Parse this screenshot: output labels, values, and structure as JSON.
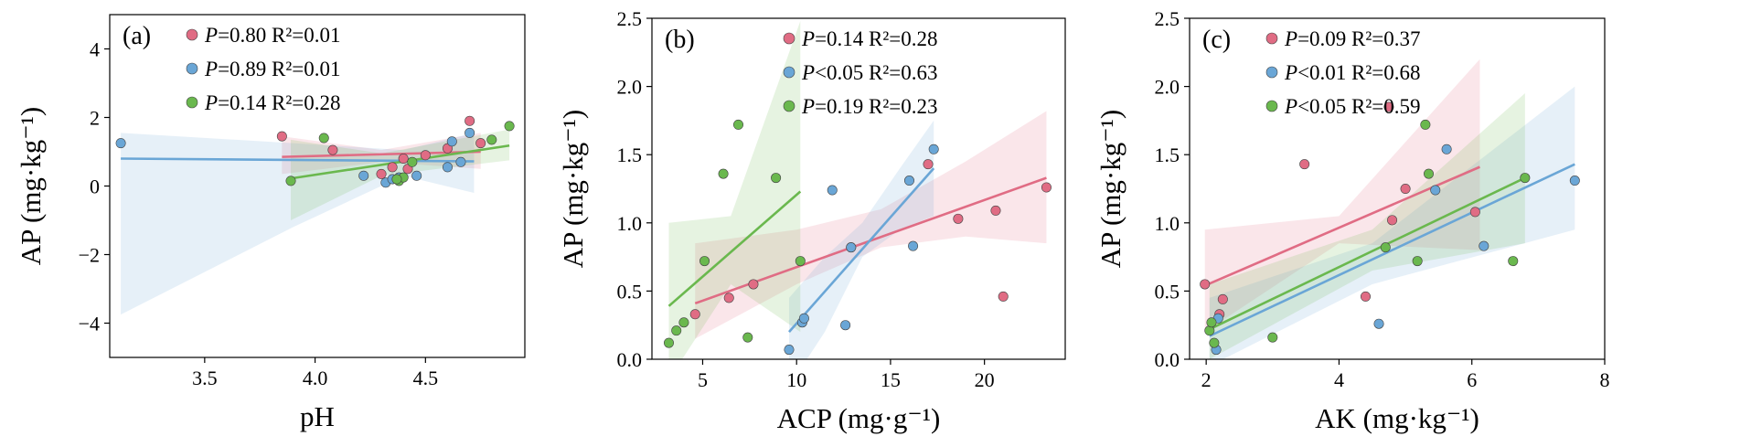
{
  "colors": {
    "pink": "#e06c84",
    "blue": "#6aa6d6",
    "green": "#6ab84e"
  },
  "chart_data": [
    {
      "type": "scatter",
      "panel": "(a)",
      "xlabel": "pH",
      "ylabel": "AP (mg·kg⁻¹)",
      "xlim": [
        3.07,
        4.95
      ],
      "ylim": [
        -5,
        5
      ],
      "xticks": [
        3.5,
        4.0,
        4.5
      ],
      "xtick_labels": [
        "3.5",
        "4.0",
        "4.5"
      ],
      "yticks": [
        -4,
        -2,
        0,
        2,
        4
      ],
      "ytick_labels": [
        "−4",
        "−2",
        "0",
        "2",
        "4"
      ],
      "legend_position": "top-left",
      "series": [
        {
          "color": "pink",
          "legend": {
            "p": "P",
            "pval": "=0.80",
            "r2": "R²=0.01"
          },
          "points": [
            [
              3.85,
              1.45
            ],
            [
              4.08,
              1.05
            ],
            [
              4.35,
              0.55
            ],
            [
              4.42,
              0.5
            ],
            [
              4.5,
              0.9
            ],
            [
              4.6,
              1.1
            ],
            [
              4.7,
              1.9
            ],
            [
              4.75,
              1.25
            ],
            [
              4.3,
              0.35
            ],
            [
              4.4,
              0.8
            ]
          ],
          "fit": [
            [
              3.85,
              0.85
            ],
            [
              4.75,
              1.0
            ]
          ],
          "band": [
            [
              3.85,
              0.35,
              1.45
            ],
            [
              4.3,
              0.7,
              1.05
            ],
            [
              4.75,
              0.5,
              1.55
            ]
          ]
        },
        {
          "color": "blue",
          "legend": {
            "p": "P",
            "pval": "=0.89",
            "r2": "R²=0.01"
          },
          "points": [
            [
              3.12,
              1.25
            ],
            [
              4.22,
              0.3
            ],
            [
              4.32,
              0.1
            ],
            [
              4.38,
              0.25
            ],
            [
              4.46,
              0.3
            ],
            [
              4.6,
              0.55
            ],
            [
              4.62,
              1.3
            ],
            [
              4.66,
              0.7
            ],
            [
              4.7,
              1.55
            ],
            [
              4.35,
              0.2
            ]
          ],
          "fit": [
            [
              3.12,
              0.8
            ],
            [
              4.72,
              0.72
            ]
          ],
          "band": [
            [
              3.12,
              -3.75,
              1.55
            ],
            [
              3.9,
              -1.2,
              1.25
            ],
            [
              4.4,
              0.3,
              1.05
            ],
            [
              4.72,
              -0.2,
              1.55
            ]
          ]
        },
        {
          "color": "green",
          "legend": {
            "p": "P",
            "pval": "=0.14",
            "r2": "R²=0.28"
          },
          "points": [
            [
              3.89,
              0.15
            ],
            [
              4.04,
              1.4
            ],
            [
              4.38,
              0.15
            ],
            [
              4.4,
              0.25
            ],
            [
              4.44,
              0.7
            ],
            [
              4.8,
              1.35
            ],
            [
              4.88,
              1.75
            ],
            [
              4.37,
              0.2
            ]
          ],
          "fit": [
            [
              3.89,
              0.22
            ],
            [
              4.88,
              1.18
            ]
          ],
          "band": [
            [
              3.89,
              -1.0,
              1.35
            ],
            [
              4.3,
              0.3,
              0.95
            ],
            [
              4.88,
              0.75,
              1.65
            ]
          ]
        }
      ]
    },
    {
      "type": "scatter",
      "panel": "(b)",
      "xlabel": "ACP (mg·g⁻¹)",
      "ylabel": "AP (mg·kg⁻¹)",
      "xlim": [
        2.3,
        24.3
      ],
      "ylim": [
        0,
        2.5
      ],
      "xticks": [
        5,
        10,
        15,
        20
      ],
      "xtick_labels": [
        "5",
        "10",
        "15",
        "20"
      ],
      "yticks": [
        0,
        0.5,
        1.0,
        1.5,
        2.0,
        2.5
      ],
      "ytick_labels": [
        "0.0",
        "0.5",
        "1.0",
        "1.5",
        "2.0",
        "2.5"
      ],
      "legend_position": "top-center",
      "series": [
        {
          "color": "pink",
          "legend": {
            "p": "P",
            "pval": "=0.14",
            "r2": "R²=0.28"
          },
          "points": [
            [
              4.6,
              0.33
            ],
            [
              6.4,
              0.45
            ],
            [
              7.7,
              0.55
            ],
            [
              12.9,
              0.82
            ],
            [
              17.0,
              1.43
            ],
            [
              18.6,
              1.03
            ],
            [
              20.6,
              1.09
            ],
            [
              21.0,
              0.46
            ],
            [
              23.3,
              1.26
            ]
          ],
          "fit": [
            [
              4.6,
              0.41
            ],
            [
              23.3,
              1.33
            ]
          ],
          "band": [
            [
              4.6,
              0.15,
              0.85
            ],
            [
              10.0,
              0.55,
              0.95
            ],
            [
              14.5,
              0.82,
              1.1
            ],
            [
              19.0,
              0.9,
              1.45
            ],
            [
              23.3,
              0.85,
              1.82
            ]
          ]
        },
        {
          "color": "blue",
          "legend": {
            "p": "P",
            "pval": "<0.05",
            "r2": "R²=0.63"
          },
          "points": [
            [
              9.6,
              0.07
            ],
            [
              10.3,
              0.27
            ],
            [
              10.4,
              0.3
            ],
            [
              11.9,
              1.24
            ],
            [
              12.6,
              0.25
            ],
            [
              12.9,
              0.82
            ],
            [
              16.0,
              1.31
            ],
            [
              16.2,
              0.83
            ],
            [
              17.3,
              1.54
            ]
          ],
          "fit": [
            [
              9.6,
              0.2
            ],
            [
              17.3,
              1.4
            ]
          ],
          "band": [
            [
              9.6,
              -0.2,
              0.45
            ],
            [
              11.5,
              0.2,
              0.75
            ],
            [
              13.5,
              0.75,
              1.0
            ],
            [
              15.5,
              0.95,
              1.4
            ],
            [
              17.3,
              1.05,
              1.75
            ]
          ]
        },
        {
          "color": "green",
          "legend": {
            "p": "P",
            "pval": "=0.19",
            "r2": "R²=0.23"
          },
          "points": [
            [
              3.2,
              0.12
            ],
            [
              3.6,
              0.21
            ],
            [
              4.0,
              0.27
            ],
            [
              5.1,
              0.72
            ],
            [
              6.1,
              1.36
            ],
            [
              6.9,
              1.72
            ],
            [
              7.4,
              0.16
            ],
            [
              8.9,
              1.33
            ],
            [
              10.2,
              0.72
            ]
          ],
          "fit": [
            [
              3.2,
              0.39
            ],
            [
              10.2,
              1.23
            ]
          ],
          "band": [
            [
              3.2,
              -0.15,
              1.0
            ],
            [
              6.5,
              0.55,
              1.05
            ],
            [
              10.2,
              0.2,
              2.48
            ]
          ]
        }
      ]
    },
    {
      "type": "scatter",
      "panel": "(c)",
      "xlabel": "AK (mg·kg⁻¹)",
      "ylabel": "AP (mg·kg⁻¹)",
      "xlim": [
        1.75,
        8.0
      ],
      "ylim": [
        0,
        2.5
      ],
      "xticks": [
        2,
        4,
        6,
        8
      ],
      "xtick_labels": [
        "2",
        "4",
        "6",
        "8"
      ],
      "yticks": [
        0,
        0.5,
        1.0,
        1.5,
        2.0,
        2.5
      ],
      "ytick_labels": [
        "0.0",
        "0.5",
        "1.0",
        "1.5",
        "2.0",
        "2.5"
      ],
      "legend_position": "top-left",
      "series": [
        {
          "color": "pink",
          "legend": {
            "p": "P",
            "pval": "=0.09",
            "r2": "R²=0.37"
          },
          "points": [
            [
              1.98,
              0.55
            ],
            [
              2.2,
              0.33
            ],
            [
              2.25,
              0.44
            ],
            [
              3.48,
              1.43
            ],
            [
              4.4,
              0.46
            ],
            [
              4.8,
              1.02
            ],
            [
              5.0,
              1.25
            ],
            [
              6.05,
              1.08
            ],
            [
              4.75,
              1.85
            ]
          ],
          "fit": [
            [
              1.98,
              0.54
            ],
            [
              6.12,
              1.41
            ]
          ],
          "band": [
            [
              1.98,
              0.2,
              0.95
            ],
            [
              4.0,
              0.85,
              1.05
            ],
            [
              6.12,
              0.8,
              2.2
            ]
          ]
        },
        {
          "color": "blue",
          "legend": {
            "p": "P",
            "pval": "<0.01",
            "r2": "R²=0.68"
          },
          "points": [
            [
              2.15,
              0.07
            ],
            [
              2.18,
              0.3
            ],
            [
              4.6,
              0.26
            ],
            [
              5.45,
              1.24
            ],
            [
              5.62,
              1.54
            ],
            [
              6.18,
              0.83
            ],
            [
              7.55,
              1.31
            ]
          ],
          "fit": [
            [
              2.05,
              0.17
            ],
            [
              7.55,
              1.43
            ]
          ],
          "band": [
            [
              2.05,
              -0.05,
              0.45
            ],
            [
              4.5,
              0.55,
              0.85
            ],
            [
              7.55,
              0.95,
              2.0
            ]
          ]
        },
        {
          "color": "green",
          "legend": {
            "p": "P",
            "pval": "<0.05",
            "r2": "R²=0.59"
          },
          "points": [
            [
              2.05,
              0.21
            ],
            [
              2.08,
              0.27
            ],
            [
              2.12,
              0.12
            ],
            [
              3.0,
              0.16
            ],
            [
              4.7,
              0.82
            ],
            [
              5.18,
              0.72
            ],
            [
              5.3,
              1.72
            ],
            [
              5.35,
              1.36
            ],
            [
              6.62,
              0.72
            ],
            [
              6.8,
              1.33
            ]
          ],
          "fit": [
            [
              2.05,
              0.22
            ],
            [
              6.8,
              1.33
            ]
          ],
          "band": [
            [
              2.05,
              0.0,
              0.55
            ],
            [
              4.5,
              0.65,
              0.95
            ],
            [
              6.8,
              0.85,
              1.95
            ]
          ]
        }
      ]
    }
  ]
}
